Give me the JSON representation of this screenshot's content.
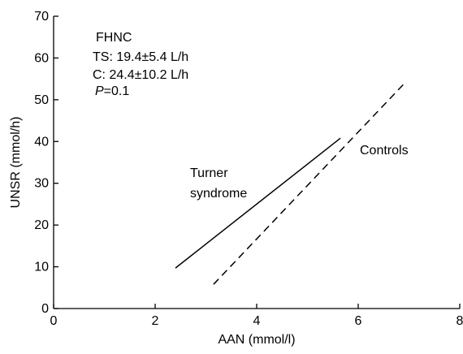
{
  "chart_data": {
    "type": "line",
    "xlabel": "AAN (mmol/l)",
    "ylabel": "UNSR (mmol/h)",
    "xlim": [
      0,
      8
    ],
    "ylim": [
      0,
      70
    ],
    "x_ticks": [
      0,
      2,
      4,
      6,
      8
    ],
    "y_ticks": [
      0,
      10,
      20,
      30,
      40,
      50,
      60,
      70
    ],
    "grid": false,
    "legend": "none",
    "series": [
      {
        "name": "Turner syndrome",
        "style": "solid",
        "color": "#000000",
        "x": [
          2.4,
          5.65
        ],
        "y": [
          9.7,
          40.8
        ]
      },
      {
        "name": "Controls",
        "style": "dashed",
        "color": "#000000",
        "x": [
          3.15,
          6.9
        ],
        "y": [
          5.8,
          53.8
        ]
      }
    ],
    "annotations": {
      "box_title": "FHNC",
      "ts": "TS: 19.4±5.4 L/h",
      "c": "C: 24.4±10.2 L/h",
      "p_italic": "P",
      "p_rest": "=0.1",
      "series_label_turner_1": "Turner",
      "series_label_turner_2": "syndrome",
      "series_label_controls": "Controls"
    }
  }
}
